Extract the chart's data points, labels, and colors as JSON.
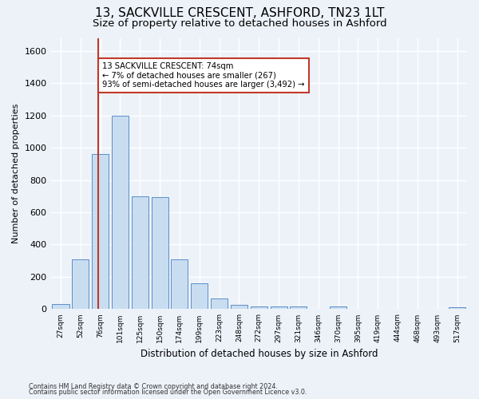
{
  "title1": "13, SACKVILLE CRESCENT, ASHFORD, TN23 1LT",
  "title2": "Size of property relative to detached houses in Ashford",
  "xlabel": "Distribution of detached houses by size in Ashford",
  "ylabel": "Number of detached properties",
  "footer1": "Contains HM Land Registry data © Crown copyright and database right 2024.",
  "footer2": "Contains public sector information licensed under the Open Government Licence v3.0.",
  "annotation_title": "13 SACKVILLE CRESCENT: 74sqm",
  "annotation_line1": "← 7% of detached houses are smaller (267)",
  "annotation_line2": "93% of semi-detached houses are larger (3,492) →",
  "property_size": 74,
  "bar_color": "#c9ddf0",
  "bar_edge_color": "#5b8fc9",
  "redline_color": "#c0392b",
  "annotation_box_color": "#ffffff",
  "annotation_box_edge": "#c0392b",
  "categories": [
    "27sqm",
    "52sqm",
    "76sqm",
    "101sqm",
    "125sqm",
    "150sqm",
    "174sqm",
    "199sqm",
    "223sqm",
    "248sqm",
    "272sqm",
    "297sqm",
    "321sqm",
    "346sqm",
    "370sqm",
    "395sqm",
    "419sqm",
    "444sqm",
    "468sqm",
    "493sqm",
    "517sqm"
  ],
  "values": [
    30,
    310,
    960,
    1200,
    700,
    695,
    310,
    158,
    65,
    25,
    15,
    15,
    15,
    2,
    15,
    2,
    2,
    2,
    2,
    2,
    10
  ],
  "ylim": [
    0,
    1680
  ],
  "yticks": [
    0,
    200,
    400,
    600,
    800,
    1000,
    1200,
    1400,
    1600
  ],
  "bg_color": "#edf2f9",
  "grid_color": "#ffffff",
  "title1_fontsize": 11,
  "title2_fontsize": 9.5
}
